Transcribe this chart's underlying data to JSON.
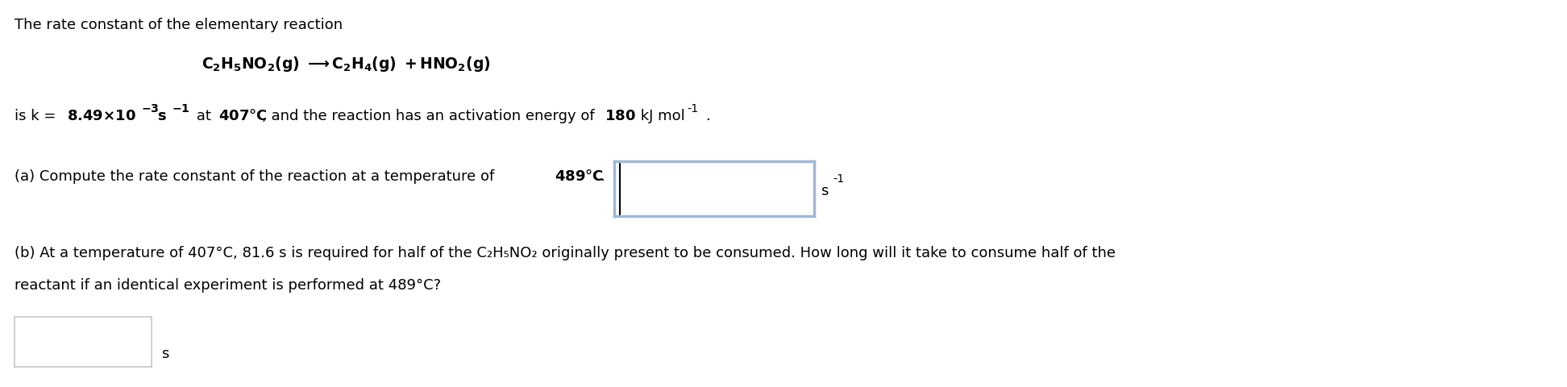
{
  "bg_color": "#ffffff",
  "line1": "The rate constant of the elementary reaction",
  "eq_line": "C₂H₅NO₂(g) —→C₂H₄(g) +HNO₂(g)",
  "line3_pre": "is k = ",
  "line3_bold": "8.49×10",
  "line3_exp": "-3",
  "line3_bold2": " s",
  "line3_exp2": "-1",
  "line3_mid": " at ",
  "line3_bold3": "407°C",
  "line3_post": ", and the reaction has an activation energy of ",
  "line3_bold4": "180",
  "line3_end": " kJ mol",
  "line3_exp3": "-1",
  "line3_dot": ".",
  "line4_pre": "(a) Compute the rate constant of the reaction at a temperature of ",
  "line4_bold": "489°C",
  "line4_dot": ".",
  "line5": "(b) At a temperature of 407°C, 81.6 s is required for half of the C₂H₅NO₂ originally present to be consumed. How long will it take to consume half of the",
  "line6": "reactant if an identical experiment is performed at 489°C?",
  "unit_s1": "s",
  "exp_s1": "-1",
  "bottom_s": "s",
  "box1_color": "#a0b8d8",
  "box2_color": "#c8c8c8",
  "fontsize": 13.0
}
